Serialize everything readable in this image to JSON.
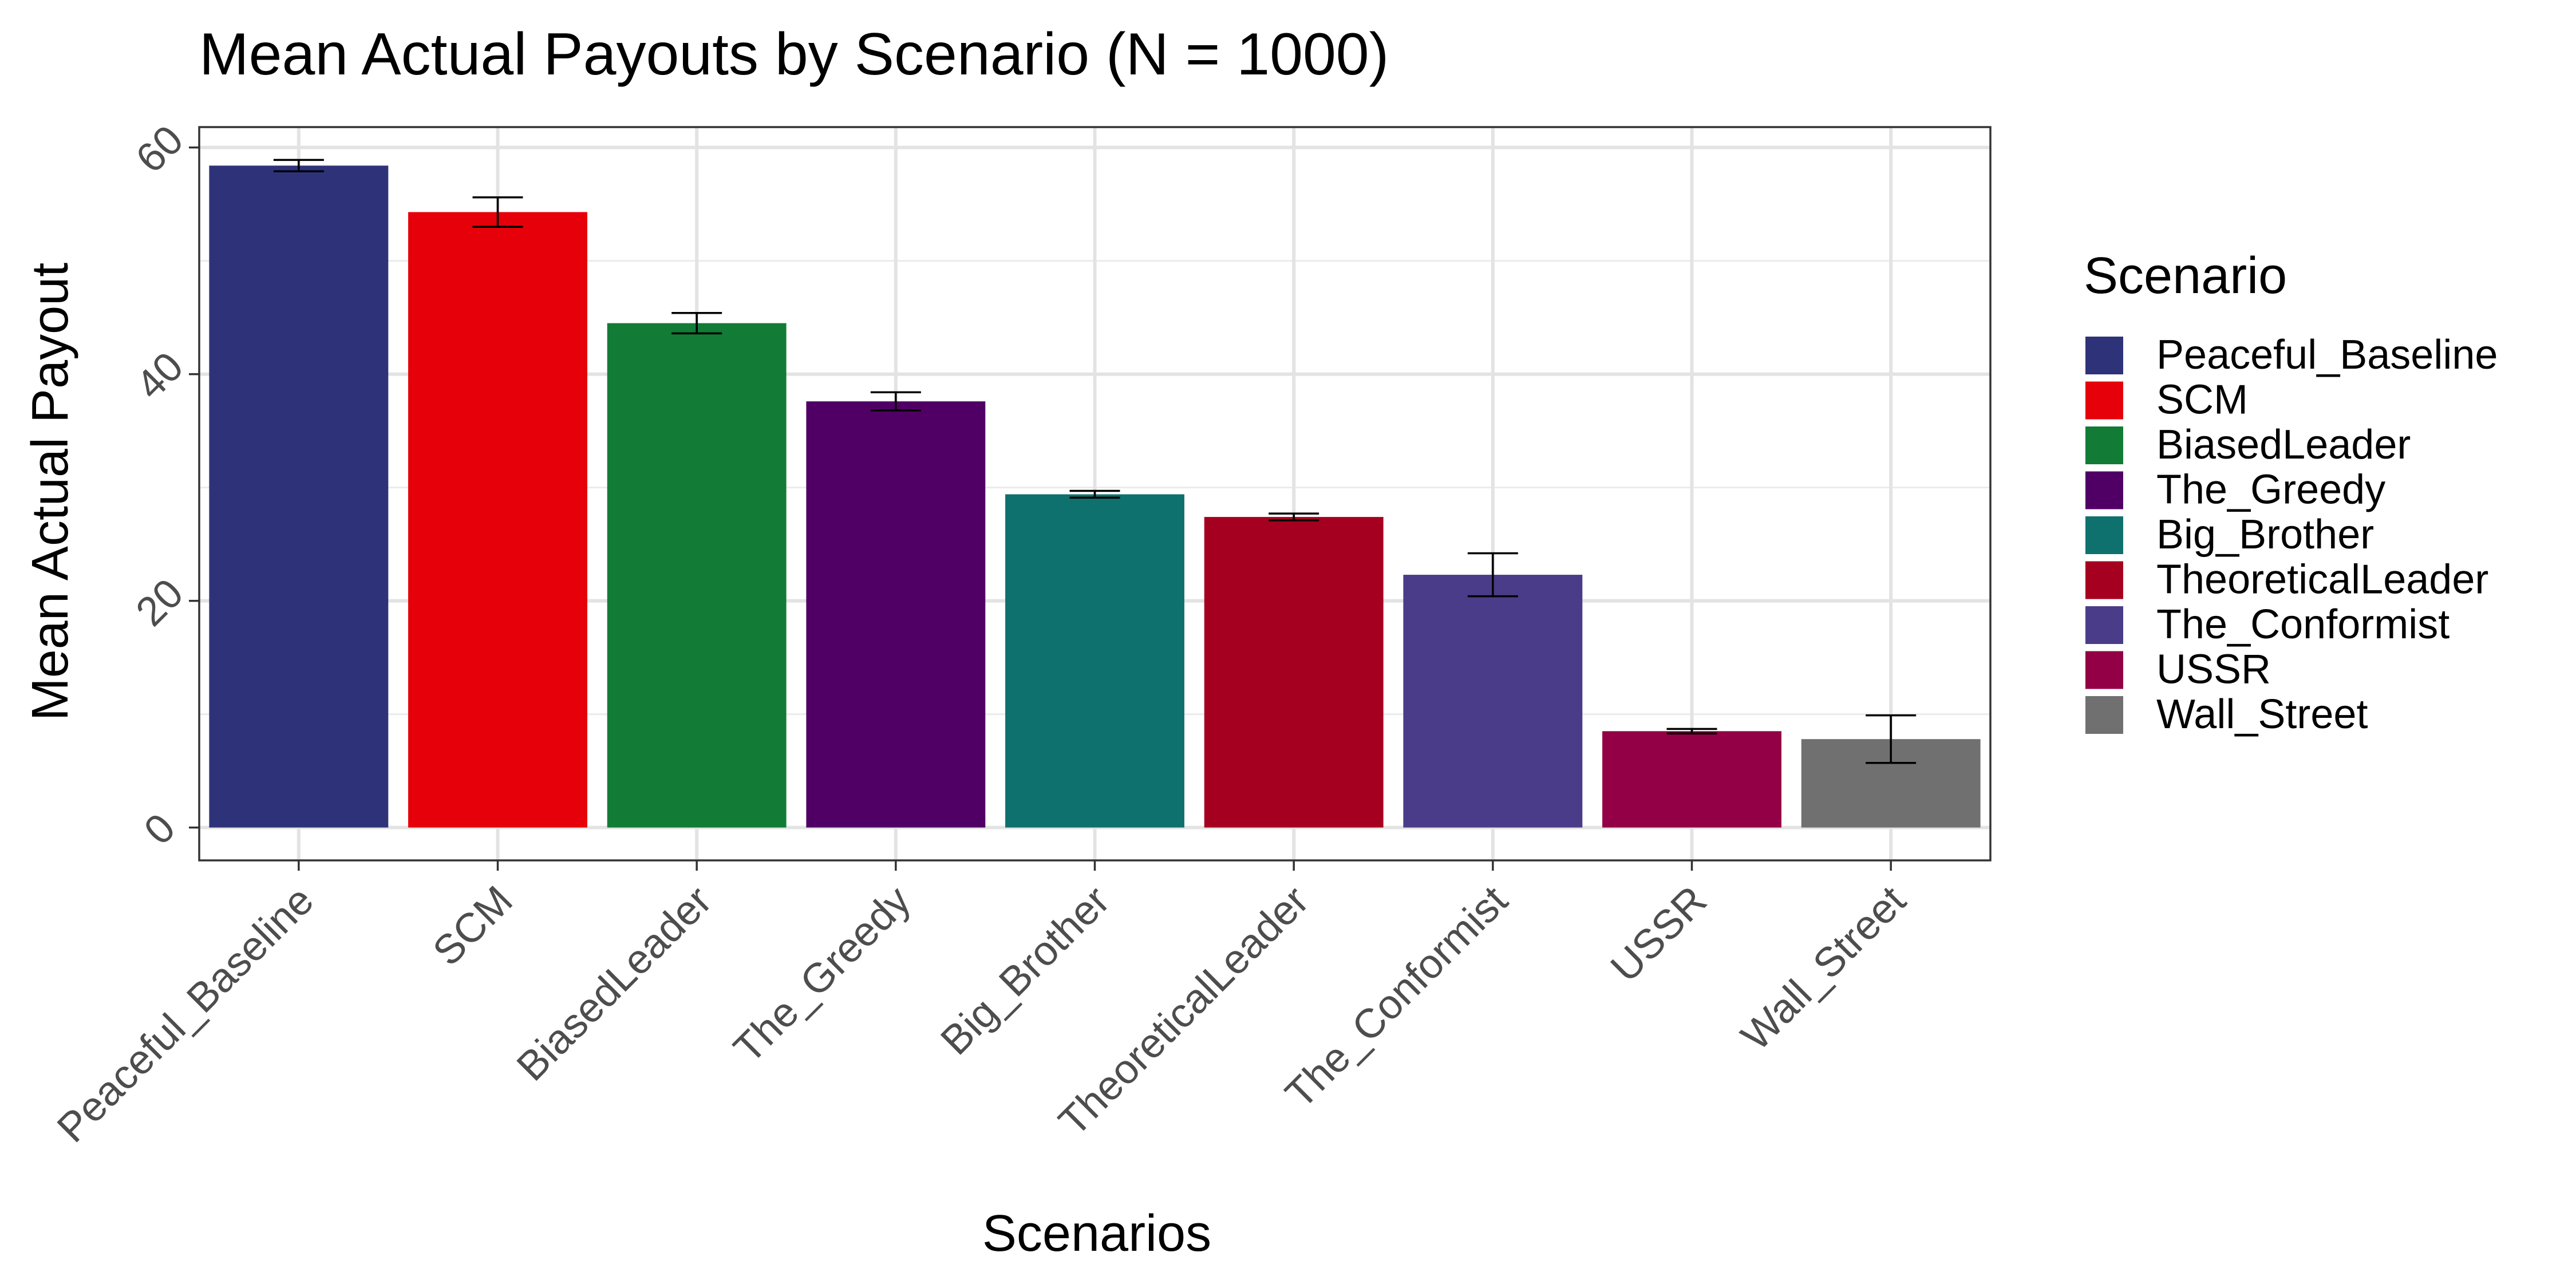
{
  "chart_data": {
    "type": "bar",
    "title": "Mean Actual Payouts by Scenario (N = 1000)",
    "xlabel": "Scenarios",
    "ylabel": "Mean Actual Payout",
    "ylim": [
      -2.9,
      61.8
    ],
    "yticks": [
      "0",
      "20",
      "40",
      "60"
    ],
    "grid": true,
    "legend_title": "Scenario",
    "legend_position": "right",
    "categories": [
      "Peaceful_Baseline",
      "SCM",
      "BiasedLeader",
      "The_Greedy",
      "Big_Brother",
      "TheoreticalLeader",
      "The_Conformist",
      "USSR",
      "Wall_Street"
    ],
    "values": [
      58.4,
      54.3,
      44.5,
      37.6,
      29.4,
      27.4,
      22.3,
      8.5,
      7.8
    ],
    "error_low": [
      57.9,
      53.0,
      43.6,
      36.8,
      29.1,
      27.1,
      20.4,
      8.3,
      5.7
    ],
    "error_high": [
      58.9,
      55.6,
      45.4,
      38.4,
      29.7,
      27.7,
      24.2,
      8.7,
      9.9
    ],
    "colors": [
      "#2e3379",
      "#e60009",
      "#127c36",
      "#500065",
      "#0f716e",
      "#a60020",
      "#4b3c89",
      "#930045",
      "#707070"
    ]
  }
}
